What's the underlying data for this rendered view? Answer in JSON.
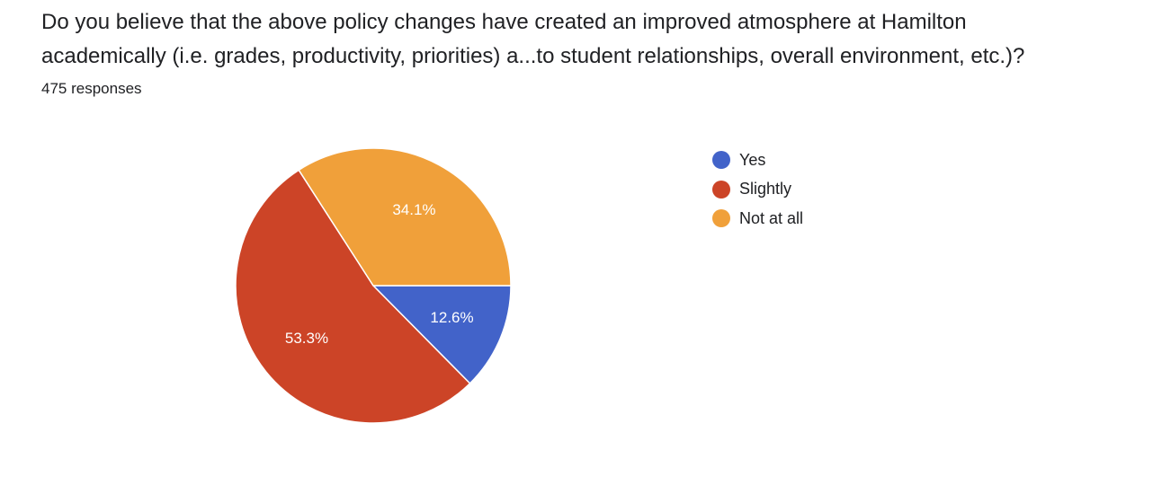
{
  "question": {
    "line1": "Do you believe that the above policy changes have created an improved atmosphere at Hamilton",
    "line2": "academically (i.e. grades, productivity, priorities) a...to student relationships, overall environment, etc.)?"
  },
  "responses_label": "475 responses",
  "chart_data": {
    "type": "pie",
    "title": "Do you believe that the above policy changes have created an improved atmosphere at Hamilton academically (i.e. grades, productivity, priorities) a...to student relationships, overall environment, etc.)?",
    "total_responses": 475,
    "start_angle_deg": 90,
    "direction": "clockwise-from-3-oclock",
    "legend_position": "right",
    "slices": [
      {
        "label": "Yes",
        "value": 12.6,
        "display": "12.6%",
        "color": "#4263c9"
      },
      {
        "label": "Slightly",
        "value": 53.3,
        "display": "53.3%",
        "color": "#cc4427"
      },
      {
        "label": "Not at all",
        "value": 34.1,
        "display": "34.1%",
        "color": "#f0a03a"
      }
    ]
  }
}
